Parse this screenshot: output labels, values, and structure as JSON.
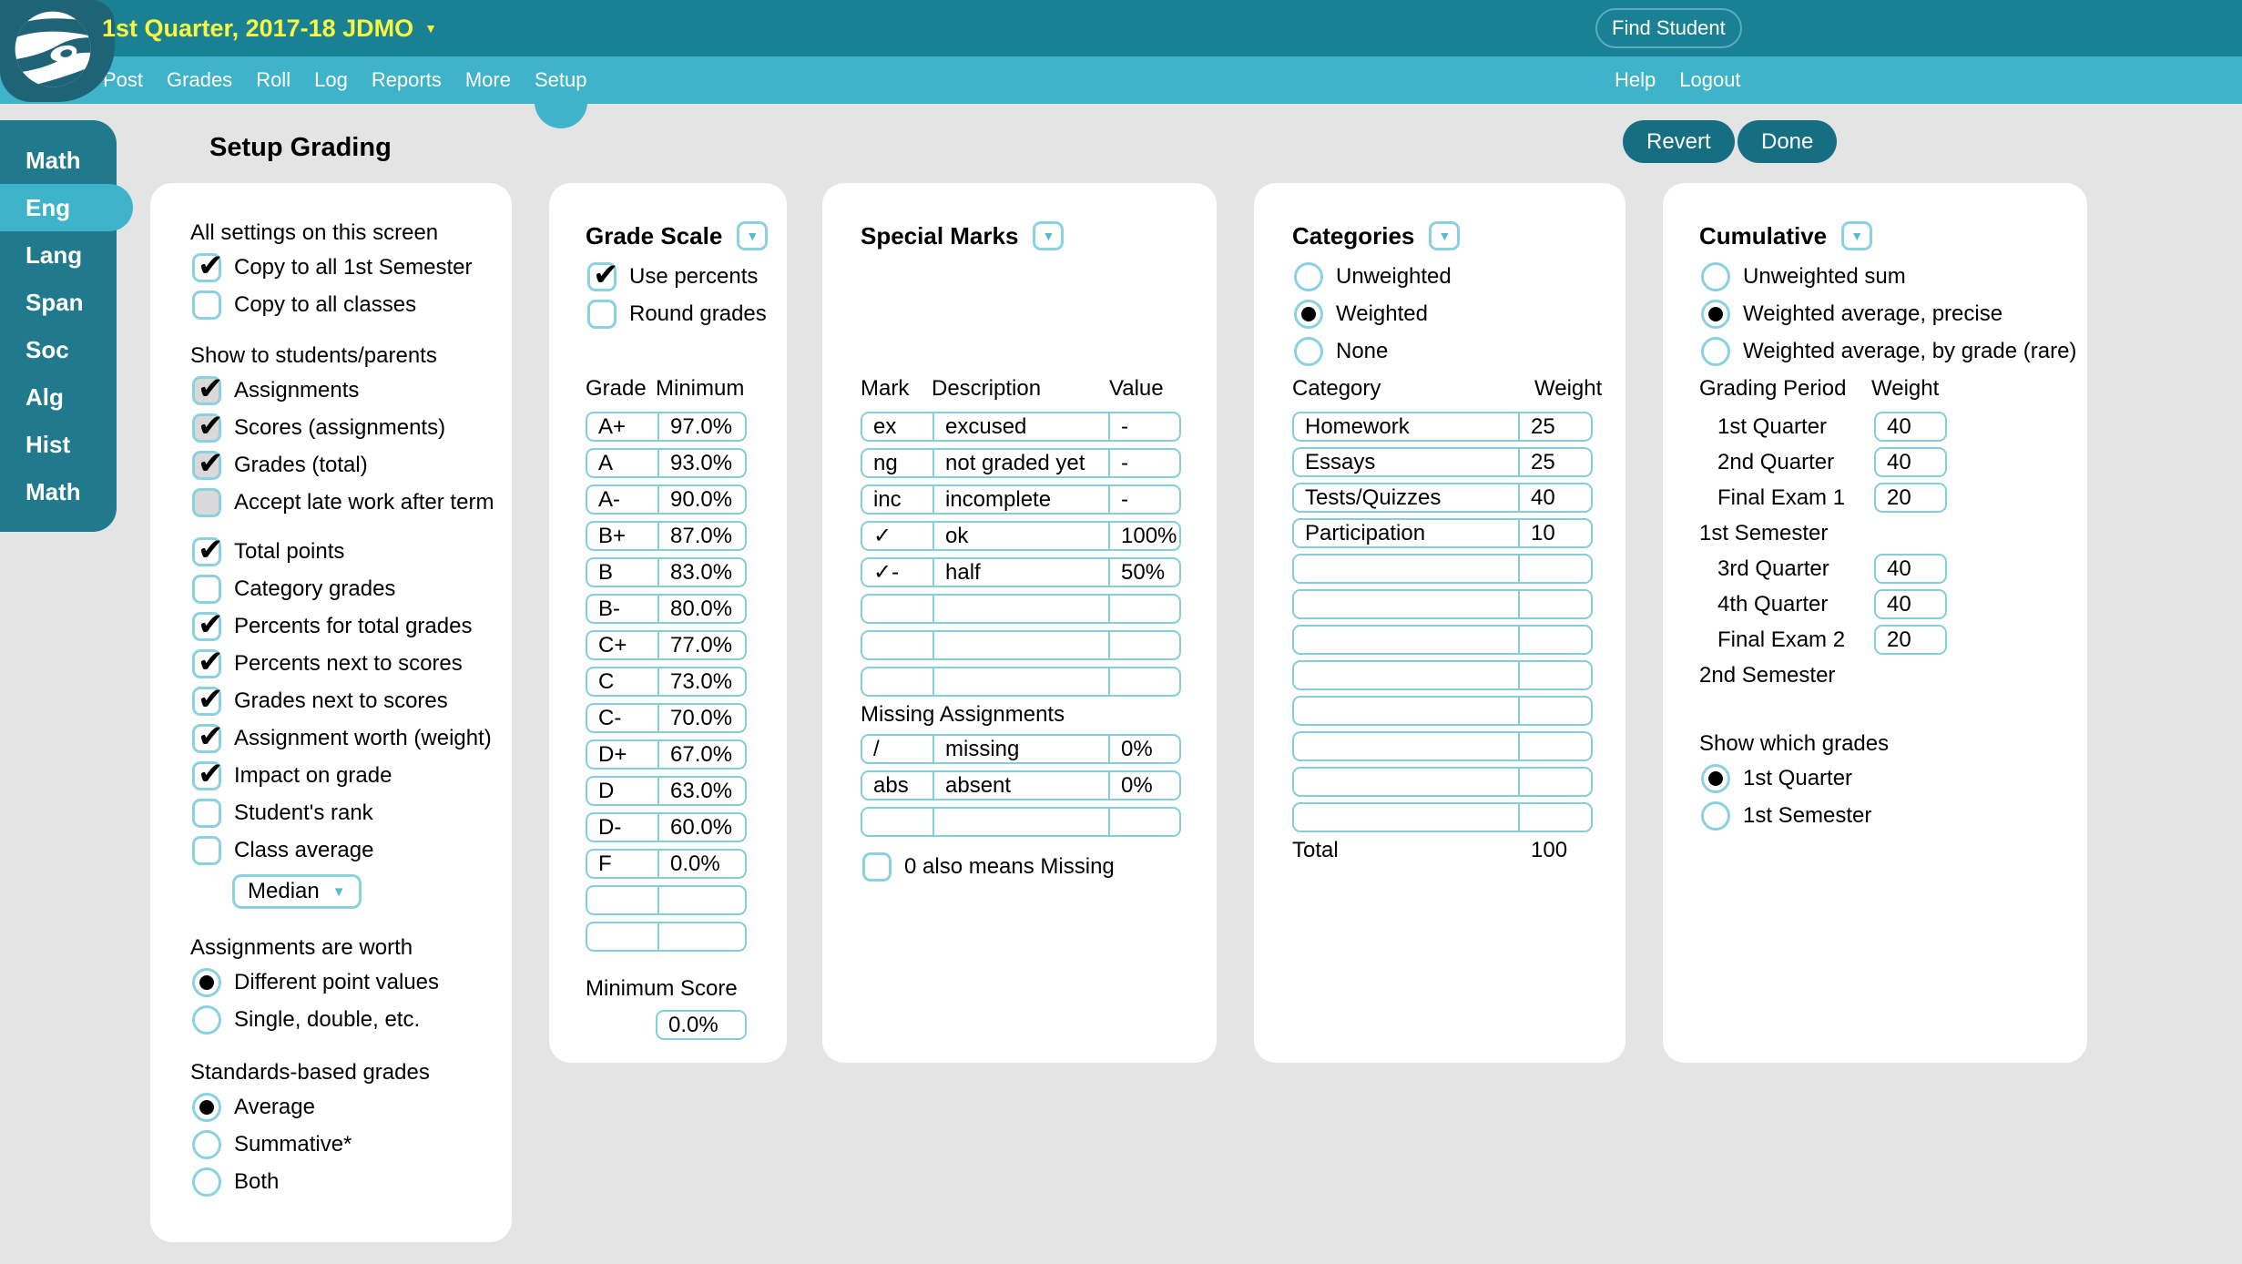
{
  "icons": {
    "caret_down": "▼",
    "check": "✔"
  },
  "colors": {
    "topbar": "#1a8094",
    "navbar": "#3eb3c9",
    "sidebar": "#21798d",
    "active_teal": "#3eb3c9",
    "logo_teal": "#1f6476",
    "button_teal": "#156e82",
    "title_yellow": "#f9f840",
    "input_border": "#84cdda",
    "page_bg": "#e4e4e4",
    "checkbox_gray": "#d9d9d9"
  },
  "header": {
    "class_title": "1st Quarter, 2017-18 JDMO",
    "find_student_label": "Find Student",
    "nav_items": [
      "Post",
      "Grades",
      "Roll",
      "Log",
      "Reports",
      "More",
      "Setup"
    ],
    "active_nav_index": 6,
    "nav_right_items": [
      "Help",
      "Logout"
    ]
  },
  "sidebar_items": [
    {
      "label": "Math",
      "active": false
    },
    {
      "label": "Eng",
      "active": true
    },
    {
      "label": "Lang",
      "active": false
    },
    {
      "label": "Span",
      "active": false
    },
    {
      "label": "Soc",
      "active": false
    },
    {
      "label": "Alg",
      "active": false
    },
    {
      "label": "Hist",
      "active": false
    },
    {
      "label": "Math",
      "active": false
    }
  ],
  "page": {
    "title": "Setup Grading",
    "revert_label": "Revert",
    "done_label": "Done"
  },
  "settings_panel": {
    "sections": [
      {
        "title": "All settings on this screen",
        "items": [
          {
            "label": "Copy to all 1st Semester",
            "checked": true,
            "gray": false
          },
          {
            "label": "Copy to all classes",
            "checked": false,
            "gray": false
          }
        ]
      },
      {
        "title": "Show to students/parents",
        "items": [
          {
            "label": "Assignments",
            "checked": true,
            "gray": true
          },
          {
            "label": "Scores (assignments)",
            "checked": true,
            "gray": true
          },
          {
            "label": "Grades (total)",
            "checked": true,
            "gray": true
          },
          {
            "label": "Accept late work after term",
            "checked": false,
            "gray": true
          }
        ]
      },
      {
        "title": "",
        "items": [
          {
            "label": "Total points",
            "checked": true,
            "gray": false
          },
          {
            "label": "Category grades",
            "checked": false,
            "gray": false
          },
          {
            "label": "Percents for total grades",
            "checked": true,
            "gray": false
          },
          {
            "label": "Percents next to scores",
            "checked": true,
            "gray": false
          },
          {
            "label": "Grades next to scores",
            "checked": true,
            "gray": false
          },
          {
            "label": "Assignment worth (weight)",
            "checked": true,
            "gray": false
          },
          {
            "label": "Impact on grade",
            "checked": true,
            "gray": false
          },
          {
            "label": "Student's rank",
            "checked": false,
            "gray": false
          },
          {
            "label": "Class average",
            "checked": false,
            "gray": false
          }
        ]
      }
    ],
    "median_dropdown": {
      "label": "Median"
    },
    "assignments_worth": {
      "title": "Assignments are worth",
      "options": [
        {
          "label": "Different point values",
          "selected": true
        },
        {
          "label": "Single, double, etc.",
          "selected": false
        }
      ]
    },
    "standards": {
      "title": "Standards-based grades",
      "options": [
        {
          "label": "Average",
          "selected": true
        },
        {
          "label": "Summative*",
          "selected": false
        },
        {
          "label": "Both",
          "selected": false
        }
      ]
    }
  },
  "grade_scale_panel": {
    "title": "Grade Scale",
    "checkboxes": [
      {
        "label": "Use percents",
        "checked": true,
        "gray": false
      },
      {
        "label": "Round grades",
        "checked": false,
        "gray": false
      }
    ],
    "col_grade": "Grade",
    "col_min": "Minimum",
    "rows": [
      [
        "A+",
        "97.0%"
      ],
      [
        "A",
        "93.0%"
      ],
      [
        "A-",
        "90.0%"
      ],
      [
        "B+",
        "87.0%"
      ],
      [
        "B",
        "83.0%"
      ],
      [
        "B-",
        "80.0%"
      ],
      [
        "C+",
        "77.0%"
      ],
      [
        "C",
        "73.0%"
      ],
      [
        "C-",
        "70.0%"
      ],
      [
        "D+",
        "67.0%"
      ],
      [
        "D",
        "63.0%"
      ],
      [
        "D-",
        "60.0%"
      ],
      [
        "F",
        "0.0%"
      ],
      [
        "",
        ""
      ],
      [
        "",
        ""
      ]
    ],
    "min_score_label": "Minimum Score",
    "min_score_value": "0.0%"
  },
  "special_marks_panel": {
    "title": "Special Marks",
    "cols": [
      "Mark",
      "Description",
      "Value"
    ],
    "rows": [
      [
        "ex",
        "excused",
        "-"
      ],
      [
        "ng",
        "not graded yet",
        "-"
      ],
      [
        "inc",
        "incomplete",
        "-"
      ],
      [
        "✓",
        "ok",
        "100%"
      ],
      [
        "✓-",
        "half",
        "50%"
      ],
      [
        "",
        "",
        ""
      ],
      [
        "",
        "",
        ""
      ],
      [
        "",
        "",
        ""
      ]
    ],
    "missing_title": "Missing Assignments",
    "missing_rows": [
      [
        "/",
        "missing",
        "0%"
      ],
      [
        "abs",
        "absent",
        "0%"
      ],
      [
        "",
        "",
        ""
      ]
    ],
    "zero_checkbox": {
      "label": "0 also means Missing",
      "checked": false,
      "gray": false
    }
  },
  "categories_panel": {
    "title": "Categories",
    "options": [
      {
        "label": "Unweighted",
        "selected": false
      },
      {
        "label": "Weighted",
        "selected": true
      },
      {
        "label": "None",
        "selected": false
      }
    ],
    "col_category": "Category",
    "col_weight": "Weight",
    "rows": [
      [
        "Homework",
        "25"
      ],
      [
        "Essays",
        "25"
      ],
      [
        "Tests/Quizzes",
        "40"
      ],
      [
        "Participation",
        "10"
      ],
      [
        "",
        ""
      ],
      [
        "",
        ""
      ],
      [
        "",
        ""
      ],
      [
        "",
        ""
      ],
      [
        "",
        ""
      ],
      [
        "",
        ""
      ],
      [
        "",
        ""
      ],
      [
        "",
        ""
      ]
    ],
    "total_label": "Total",
    "total_value": "100"
  },
  "cumulative_panel": {
    "title": "Cumulative",
    "options": [
      {
        "label": "Unweighted sum",
        "selected": false
      },
      {
        "label": "Weighted average, precise",
        "selected": true
      },
      {
        "label": "Weighted average, by grade (rare)",
        "selected": false
      }
    ],
    "col_period": "Grading Period",
    "col_weight": "Weight",
    "rows": [
      {
        "label": "1st Quarter",
        "value": "40",
        "group": false
      },
      {
        "label": "2nd Quarter",
        "value": "40",
        "group": false
      },
      {
        "label": "Final Exam 1",
        "value": "20",
        "group": false
      },
      {
        "label": "1st Semester",
        "group": true
      },
      {
        "label": "3rd Quarter",
        "value": "40",
        "group": false
      },
      {
        "label": "4th Quarter",
        "value": "40",
        "group": false
      },
      {
        "label": "Final Exam 2",
        "value": "20",
        "group": false
      },
      {
        "label": "2nd Semester",
        "group": true
      }
    ],
    "show_title": "Show which grades",
    "show_options": [
      {
        "label": "1st Quarter",
        "selected": true
      },
      {
        "label": "1st Semester",
        "selected": false
      }
    ]
  }
}
